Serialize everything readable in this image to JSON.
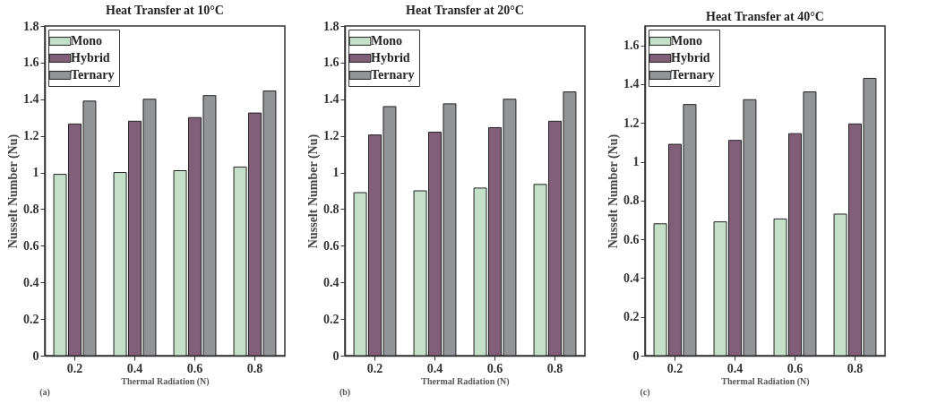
{
  "chart_data": [
    {
      "type": "bar",
      "title": "Heat Transfer at 10°C",
      "xlabel": "Thermal Radiation (N)",
      "ylabel": "Nusselt Number (Nu)",
      "annotations": [
        "(a)"
      ],
      "categories": [
        "0.2",
        "0.4",
        "0.6",
        "0.8"
      ],
      "series": [
        {
          "name": "Mono",
          "color": "#c4e0c9",
          "values": [
            0.99,
            1.0,
            1.01,
            1.03
          ]
        },
        {
          "name": "Hybrid",
          "color": "#825f79",
          "values": [
            1.265,
            1.28,
            1.3,
            1.325
          ]
        },
        {
          "name": "Ternary",
          "color": "#939498",
          "values": [
            1.39,
            1.4,
            1.42,
            1.445
          ]
        }
      ],
      "ylim": [
        0,
        1.8
      ],
      "yticks": [
        0,
        0.2,
        0.4,
        0.6,
        0.8,
        1,
        1.2,
        1.4,
        1.6,
        1.8
      ],
      "legend": "top left",
      "grid": false
    },
    {
      "type": "bar",
      "title": "Heat Transfer at 20°C",
      "xlabel": "Thermal Radiation (N)",
      "ylabel": "Nusselt Number (Nu)",
      "annotations": [
        "(b)"
      ],
      "categories": [
        "0.2",
        "0.4",
        "0.6",
        "0.8"
      ],
      "series": [
        {
          "name": "Mono",
          "color": "#c4e0c9",
          "values": [
            0.89,
            0.9,
            0.915,
            0.935
          ]
        },
        {
          "name": "Hybrid",
          "color": "#825f79",
          "values": [
            1.205,
            1.22,
            1.245,
            1.28
          ]
        },
        {
          "name": "Ternary",
          "color": "#939498",
          "values": [
            1.36,
            1.375,
            1.4,
            1.44
          ]
        }
      ],
      "ylim": [
        0,
        1.8
      ],
      "yticks": [
        0,
        0.2,
        0.4,
        0.6,
        0.8,
        1,
        1.2,
        1.4,
        1.6,
        1.8
      ],
      "legend": "top left",
      "grid": false
    },
    {
      "type": "bar",
      "title": "Heat Transfer at 40°C",
      "xlabel": "Thermal Radiation (N)",
      "ylabel": "Nusselt Number (Nu)",
      "annotations": [
        "(c)"
      ],
      "categories": [
        "0.2",
        "0.4",
        "0.6",
        "0.8"
      ],
      "series": [
        {
          "name": "Mono",
          "color": "#c4e0c9",
          "values": [
            0.68,
            0.69,
            0.705,
            0.73
          ]
        },
        {
          "name": "Hybrid",
          "color": "#825f79",
          "values": [
            1.09,
            1.11,
            1.145,
            1.195
          ]
        },
        {
          "name": "Ternary",
          "color": "#939498",
          "values": [
            1.295,
            1.32,
            1.36,
            1.43
          ]
        }
      ],
      "ylim": [
        0,
        1.7
      ],
      "yticks": [
        0,
        0.2,
        0.4,
        0.6,
        0.8,
        1,
        1.2,
        1.4,
        1.6
      ],
      "legend": "top left",
      "grid": false
    }
  ]
}
